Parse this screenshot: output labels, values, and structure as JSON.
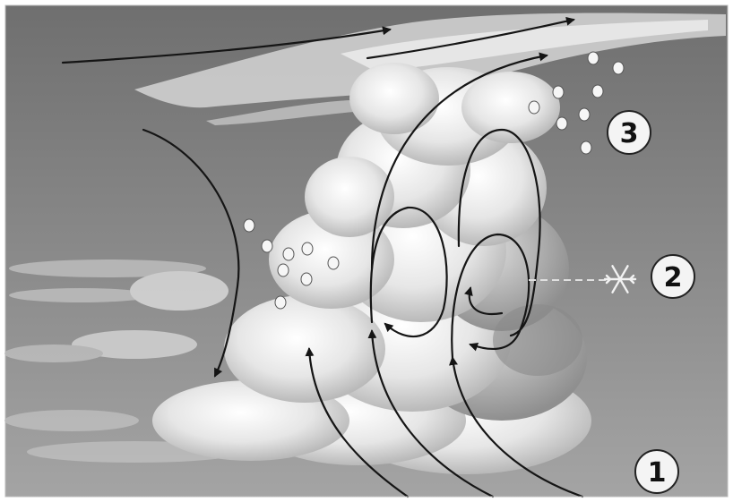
{
  "labels": {
    "marker_1": "1",
    "marker_2": "2",
    "marker_3": "3"
  },
  "icons": [
    "snowflake-icon",
    "hailstone-icon"
  ],
  "colors": {
    "sky_dark": "#707070",
    "sky_light": "#9a9a9a",
    "cloud": "#ececec",
    "arrow": "#151515",
    "marker_fill": "#f4f4f4"
  }
}
